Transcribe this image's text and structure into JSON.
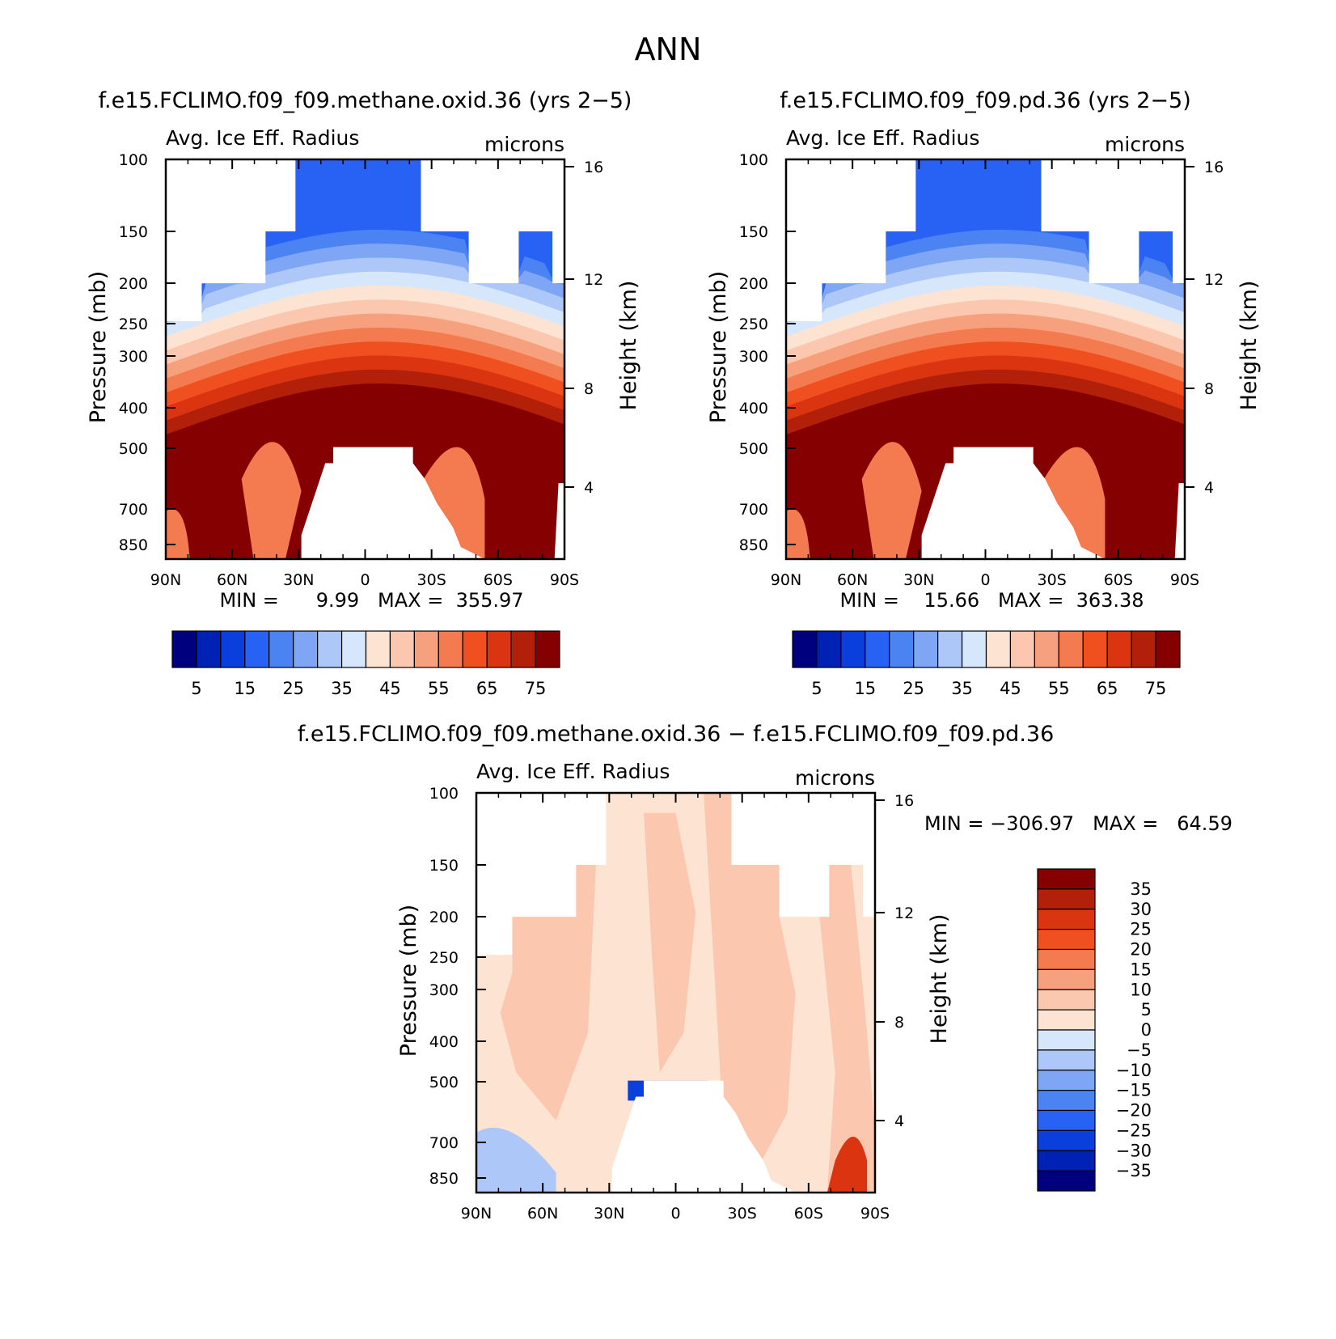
{
  "page_title": "ANN",
  "chart_data": [
    {
      "type": "heatmap",
      "title": "f.e15.FCLIMO.f09_f09.methane.oxid.36 (yrs 2-5)",
      "subtitle_left": "Avg. Ice Eff. Radius",
      "subtitle_right": "microns",
      "ylabel": "Pressure (mb)",
      "ylabel_right": "Height (km)",
      "x_ticks": [
        "90N",
        "60N",
        "30N",
        "0",
        "30S",
        "60S",
        "90S"
      ],
      "y_ticks": [
        "100",
        "150",
        "200",
        "250",
        "300",
        "400",
        "500",
        "700",
        "850"
      ],
      "y_right_ticks": [
        "16",
        "12",
        "8",
        "4"
      ],
      "ylim": [
        100,
        925
      ],
      "xlim": [
        90,
        -90
      ],
      "min_max_label": "MIN =      9.99   MAX =  355.97",
      "min": 9.99,
      "max": 355.97,
      "colorbar": {
        "orientation": "horizontal",
        "labels": [
          "5",
          "15",
          "25",
          "35",
          "45",
          "55",
          "65",
          "75"
        ],
        "colors": [
          "#00007f",
          "#0022b4",
          "#0a3fdd",
          "#2862f5",
          "#4b83f3",
          "#7ea6f5",
          "#adc8f8",
          "#d6e7fb",
          "#fde4d2",
          "#fbc7ae",
          "#f7a07d",
          "#f47a4f",
          "#f0501f",
          "#da3410",
          "#b3200a",
          "#850000"
        ]
      }
    },
    {
      "type": "heatmap",
      "title": "f.e15.FCLIMO.f09_f09.pd.36 (yrs 2-5)",
      "subtitle_left": "Avg. Ice Eff. Radius",
      "subtitle_right": "microns",
      "ylabel": "Pressure (mb)",
      "ylabel_right": "Height (km)",
      "x_ticks": [
        "90N",
        "60N",
        "30N",
        "0",
        "30S",
        "60S",
        "90S"
      ],
      "y_ticks": [
        "100",
        "150",
        "200",
        "250",
        "300",
        "400",
        "500",
        "700",
        "850"
      ],
      "y_right_ticks": [
        "16",
        "12",
        "8",
        "4"
      ],
      "ylim": [
        100,
        925
      ],
      "xlim": [
        90,
        -90
      ],
      "min_max_label": "MIN =    15.66   MAX =  363.38",
      "min": 15.66,
      "max": 363.38,
      "colorbar": {
        "orientation": "horizontal",
        "labels": [
          "5",
          "15",
          "25",
          "35",
          "45",
          "55",
          "65",
          "75"
        ],
        "colors": [
          "#00007f",
          "#0022b4",
          "#0a3fdd",
          "#2862f5",
          "#4b83f3",
          "#7ea6f5",
          "#adc8f8",
          "#d6e7fb",
          "#fde4d2",
          "#fbc7ae",
          "#f7a07d",
          "#f47a4f",
          "#f0501f",
          "#da3410",
          "#b3200a",
          "#850000"
        ]
      }
    },
    {
      "type": "heatmap",
      "title": "f.e15.FCLIMO.f09_f09.methane.oxid.36 - f.e15.FCLIMO.f09_f09.pd.36",
      "subtitle_left": "Avg. Ice Eff. Radius",
      "subtitle_right": "microns",
      "ylabel": "Pressure (mb)",
      "ylabel_right": "Height (km)",
      "x_ticks": [
        "90N",
        "60N",
        "30N",
        "0",
        "30S",
        "60S",
        "90S"
      ],
      "y_ticks": [
        "100",
        "150",
        "200",
        "250",
        "300",
        "400",
        "500",
        "700",
        "850"
      ],
      "y_right_ticks": [
        "16",
        "12",
        "8",
        "4"
      ],
      "ylim": [
        100,
        925
      ],
      "xlim": [
        90,
        -90
      ],
      "min_max_label": "MIN = -306.97   MAX =   64.59",
      "min": -306.97,
      "max": 64.59,
      "colorbar": {
        "orientation": "vertical",
        "labels": [
          "35",
          "30",
          "25",
          "20",
          "15",
          "10",
          "5",
          "0",
          "-5",
          "-10",
          "-15",
          "-20",
          "-25",
          "-30",
          "-35"
        ],
        "colors": [
          "#850000",
          "#b3200a",
          "#da3410",
          "#f0501f",
          "#f47a4f",
          "#f7a07d",
          "#fbc7ae",
          "#fde4d2",
          "#d6e7fb",
          "#adc8f8",
          "#7ea6f5",
          "#4b83f3",
          "#2862f5",
          "#0a3fdd",
          "#0022b4",
          "#00007f"
        ]
      }
    }
  ]
}
